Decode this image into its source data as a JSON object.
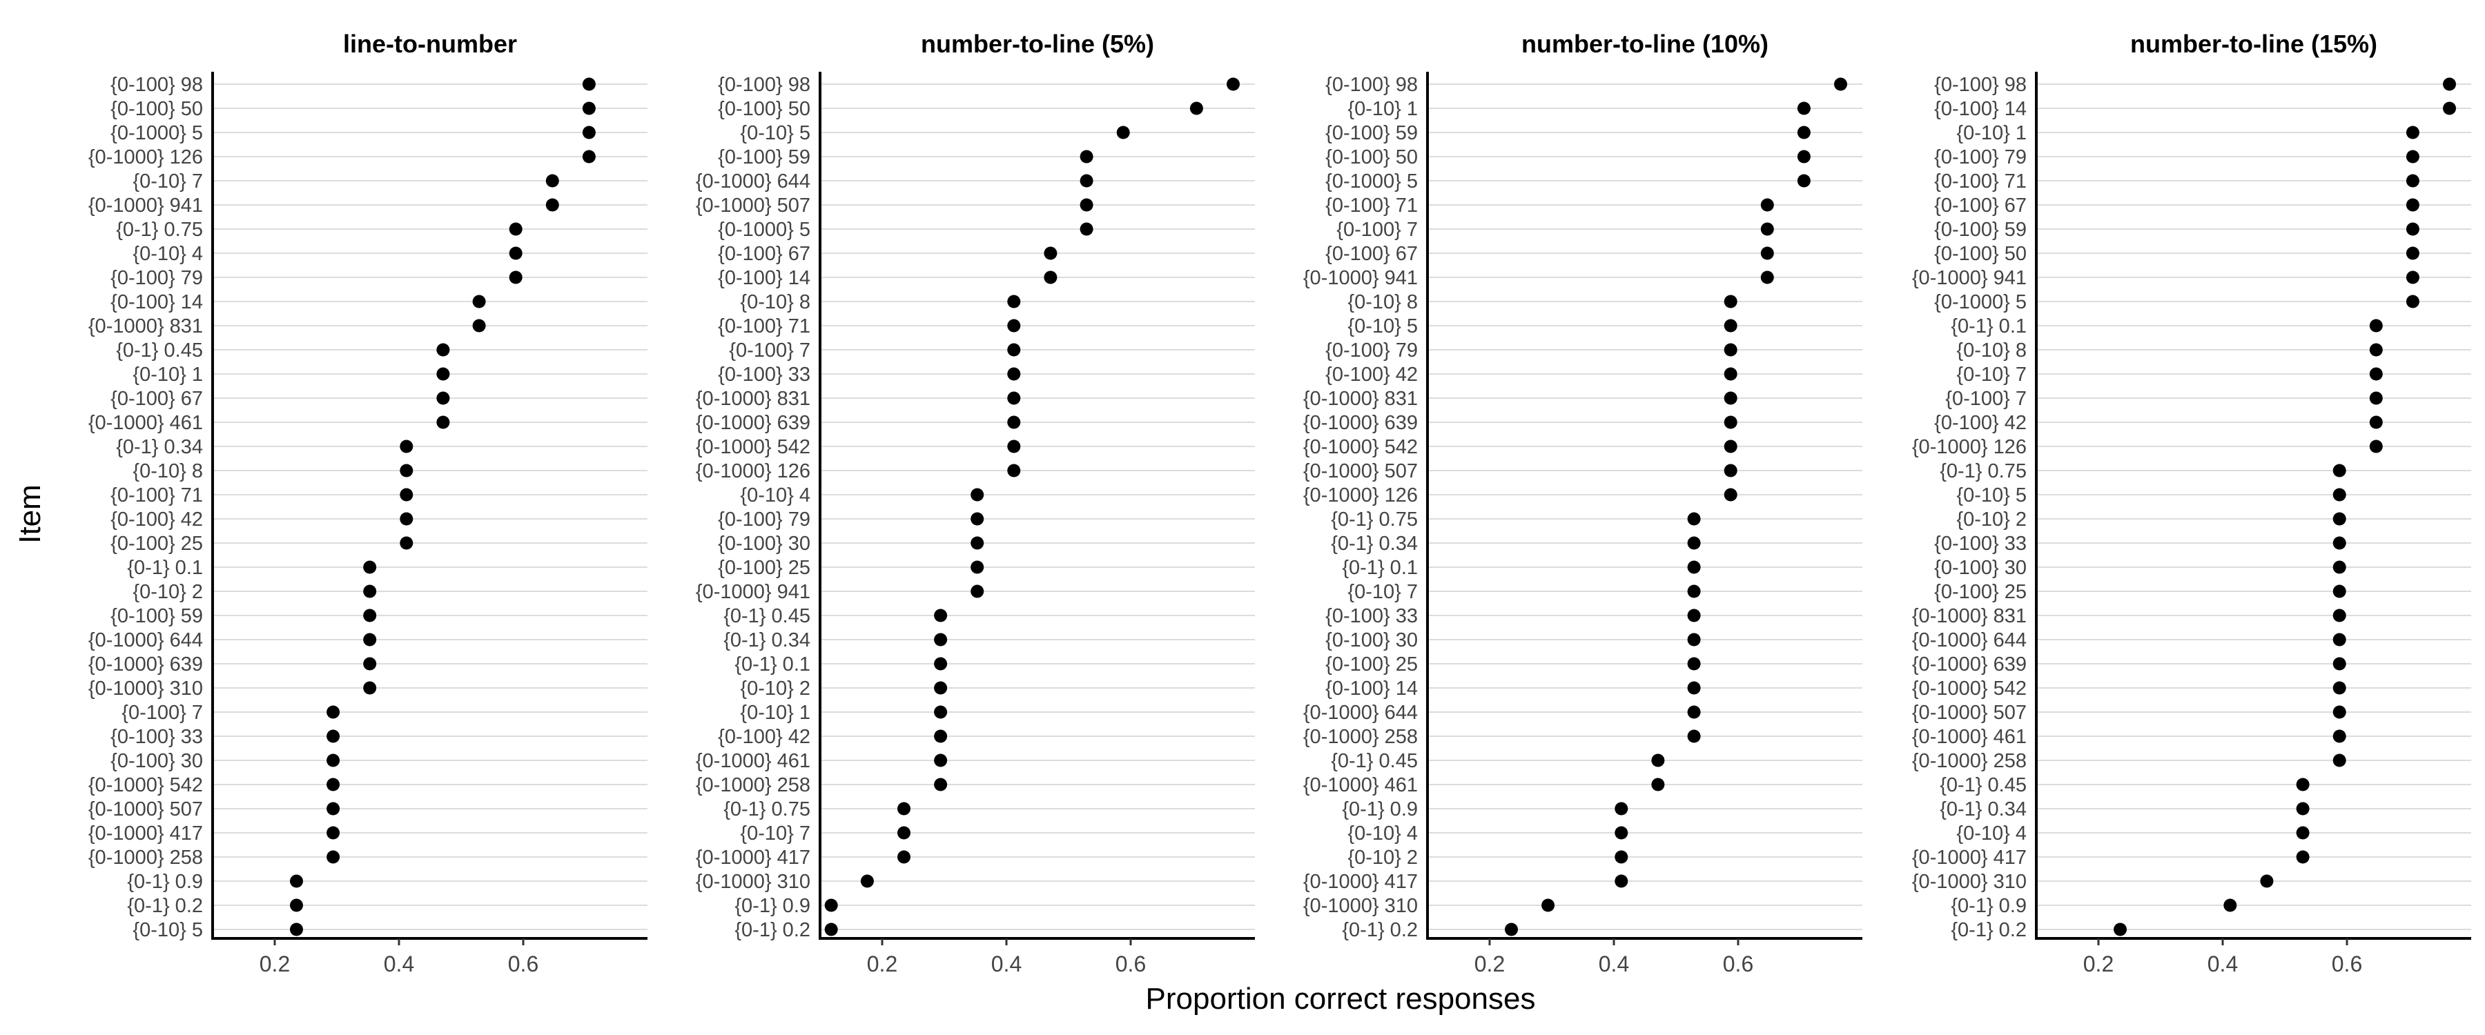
{
  "chart_data": {
    "type": "scatter",
    "xlabel": "Proportion correct responses",
    "ylabel": "Item",
    "grid": "horizontal",
    "panels": [
      {
        "title": "line-to-number",
        "xlim": [
          0.1,
          0.8
        ],
        "xticks": [
          "0.2",
          "0.4",
          "0.6"
        ],
        "items": [
          "{0-100} 98",
          "{0-100} 50",
          "{0-1000} 5",
          "{0-1000} 126",
          "{0-10} 7",
          "{0-1000} 941",
          "{0-1} 0.75",
          "{0-10} 4",
          "{0-100} 79",
          "{0-100} 14",
          "{0-1000} 831",
          "{0-1} 0.45",
          "{0-10} 1",
          "{0-100} 67",
          "{0-1000} 461",
          "{0-1} 0.34",
          "{0-10} 8",
          "{0-100} 71",
          "{0-100} 42",
          "{0-100} 25",
          "{0-1} 0.1",
          "{0-10} 2",
          "{0-100} 59",
          "{0-1000} 644",
          "{0-1000} 639",
          "{0-1000} 310",
          "{0-100} 7",
          "{0-100} 33",
          "{0-100} 30",
          "{0-1000} 542",
          "{0-1000} 507",
          "{0-1000} 417",
          "{0-1000} 258",
          "{0-1} 0.9",
          "{0-1} 0.2",
          "{0-10} 5"
        ],
        "values": [
          0.706,
          0.706,
          0.706,
          0.706,
          0.647,
          0.647,
          0.588,
          0.588,
          0.588,
          0.529,
          0.529,
          0.471,
          0.471,
          0.471,
          0.471,
          0.412,
          0.412,
          0.412,
          0.412,
          0.412,
          0.353,
          0.353,
          0.353,
          0.353,
          0.353,
          0.353,
          0.294,
          0.294,
          0.294,
          0.294,
          0.294,
          0.294,
          0.294,
          0.235,
          0.235,
          0.235
        ]
      },
      {
        "title": "number-to-line (5%)",
        "xlim": [
          0.1,
          0.8
        ],
        "xticks": [
          "0.2",
          "0.4",
          "0.6"
        ],
        "items": [
          "{0-100} 98",
          "{0-100} 50",
          "{0-10} 5",
          "{0-100} 59",
          "{0-1000} 644",
          "{0-1000} 507",
          "{0-1000} 5",
          "{0-100} 67",
          "{0-100} 14",
          "{0-10} 8",
          "{0-100} 71",
          "{0-100} 7",
          "{0-100} 33",
          "{0-1000} 831",
          "{0-1000} 639",
          "{0-1000} 542",
          "{0-1000} 126",
          "{0-10} 4",
          "{0-100} 79",
          "{0-100} 30",
          "{0-100} 25",
          "{0-1000} 941",
          "{0-1} 0.45",
          "{0-1} 0.34",
          "{0-1} 0.1",
          "{0-10} 2",
          "{0-10} 1",
          "{0-100} 42",
          "{0-1000} 461",
          "{0-1000} 258",
          "{0-1} 0.75",
          "{0-10} 7",
          "{0-1000} 417",
          "{0-1000} 310",
          "{0-1} 0.9",
          "{0-1} 0.2"
        ],
        "values": [
          0.765,
          0.706,
          0.588,
          0.529,
          0.529,
          0.529,
          0.529,
          0.471,
          0.471,
          0.412,
          0.412,
          0.412,
          0.412,
          0.412,
          0.412,
          0.412,
          0.412,
          0.353,
          0.353,
          0.353,
          0.353,
          0.353,
          0.294,
          0.294,
          0.294,
          0.294,
          0.294,
          0.294,
          0.294,
          0.294,
          0.235,
          0.235,
          0.235,
          0.176,
          0.118,
          0.118
        ]
      },
      {
        "title": "number-to-line (10%)",
        "xlim": [
          0.1,
          0.8
        ],
        "xticks": [
          "0.2",
          "0.4",
          "0.6"
        ],
        "items": [
          "{0-100} 98",
          "{0-10} 1",
          "{0-100} 59",
          "{0-100} 50",
          "{0-1000} 5",
          "{0-100} 71",
          "{0-100} 7",
          "{0-100} 67",
          "{0-1000} 941",
          "{0-10} 8",
          "{0-10} 5",
          "{0-100} 79",
          "{0-100} 42",
          "{0-1000} 831",
          "{0-1000} 639",
          "{0-1000} 542",
          "{0-1000} 507",
          "{0-1000} 126",
          "{0-1} 0.75",
          "{0-1} 0.34",
          "{0-1} 0.1",
          "{0-10} 7",
          "{0-100} 33",
          "{0-100} 30",
          "{0-100} 25",
          "{0-100} 14",
          "{0-1000} 644",
          "{0-1000} 258",
          "{0-1} 0.45",
          "{0-1000} 461",
          "{0-1} 0.9",
          "{0-10} 4",
          "{0-10} 2",
          "{0-1000} 417",
          "{0-1000} 310",
          "{0-1} 0.2"
        ],
        "values": [
          0.765,
          0.706,
          0.706,
          0.706,
          0.706,
          0.647,
          0.647,
          0.647,
          0.647,
          0.588,
          0.588,
          0.588,
          0.588,
          0.588,
          0.588,
          0.588,
          0.588,
          0.588,
          0.529,
          0.529,
          0.529,
          0.529,
          0.529,
          0.529,
          0.529,
          0.529,
          0.529,
          0.529,
          0.471,
          0.471,
          0.412,
          0.412,
          0.412,
          0.412,
          0.294,
          0.235
        ]
      },
      {
        "title": "number-to-line (15%)",
        "xlim": [
          0.1,
          0.8
        ],
        "xticks": [
          "0.2",
          "0.4",
          "0.6"
        ],
        "items": [
          "{0-100} 98",
          "{0-100} 14",
          "{0-10} 1",
          "{0-100} 79",
          "{0-100} 71",
          "{0-100} 67",
          "{0-100} 59",
          "{0-100} 50",
          "{0-1000} 941",
          "{0-1000} 5",
          "{0-1} 0.1",
          "{0-10} 8",
          "{0-10} 7",
          "{0-100} 7",
          "{0-100} 42",
          "{0-1000} 126",
          "{0-1} 0.75",
          "{0-10} 5",
          "{0-10} 2",
          "{0-100} 33",
          "{0-100} 30",
          "{0-100} 25",
          "{0-1000} 831",
          "{0-1000} 644",
          "{0-1000} 639",
          "{0-1000} 542",
          "{0-1000} 507",
          "{0-1000} 461",
          "{0-1000} 258",
          "{0-1} 0.45",
          "{0-1} 0.34",
          "{0-10} 4",
          "{0-1000} 417",
          "{0-1000} 310",
          "{0-1} 0.9",
          "{0-1} 0.2"
        ],
        "values": [
          0.765,
          0.765,
          0.706,
          0.706,
          0.706,
          0.706,
          0.706,
          0.706,
          0.706,
          0.706,
          0.647,
          0.647,
          0.647,
          0.647,
          0.647,
          0.647,
          0.588,
          0.588,
          0.588,
          0.588,
          0.588,
          0.588,
          0.588,
          0.588,
          0.588,
          0.588,
          0.588,
          0.588,
          0.588,
          0.529,
          0.529,
          0.529,
          0.529,
          0.471,
          0.412,
          0.235
        ]
      }
    ]
  }
}
